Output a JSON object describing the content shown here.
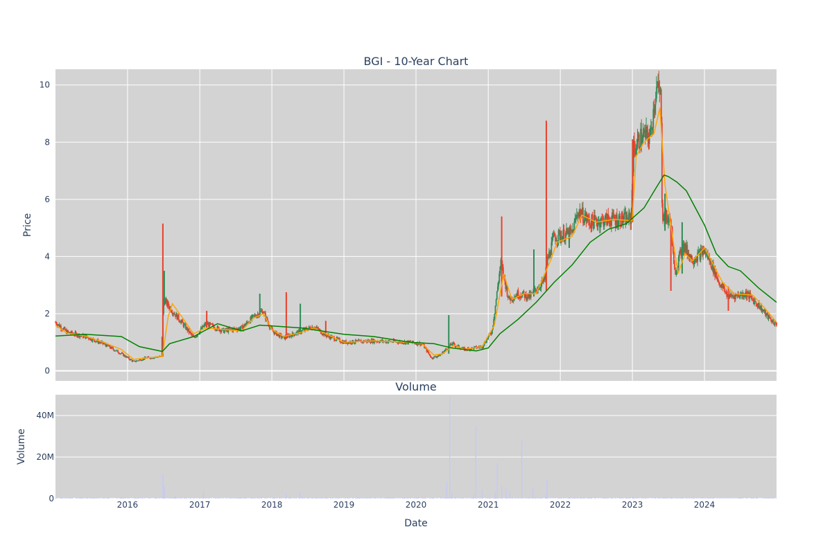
{
  "chart_data": [
    {
      "type": "candlestick",
      "title": "BGI - 10-Year Chart",
      "xlabel": "",
      "ylabel": "Price",
      "ylim": [
        -0.35,
        10.55
      ],
      "x_range": [
        "2015-01-01",
        "2024-12-31"
      ],
      "x_ticks": [
        "2016",
        "2017",
        "2018",
        "2019",
        "2020",
        "2021",
        "2022",
        "2023",
        "2024"
      ],
      "y_ticks": [
        0,
        2,
        4,
        6,
        8,
        10
      ],
      "up_color": "#2e8b57",
      "down_color": "#e8412c",
      "price_path": [
        [
          "2015-01-01",
          1.7
        ],
        [
          "2015-03-01",
          1.35
        ],
        [
          "2015-06-01",
          1.2
        ],
        [
          "2015-09-01",
          0.95
        ],
        [
          "2015-12-01",
          0.6
        ],
        [
          "2016-02-01",
          0.32
        ],
        [
          "2016-04-01",
          0.45
        ],
        [
          "2016-06-20",
          0.5
        ],
        [
          "2016-07-01",
          2.5
        ],
        [
          "2016-08-15",
          2.1
        ],
        [
          "2016-10-01",
          1.7
        ],
        [
          "2016-12-01",
          1.15
        ],
        [
          "2017-02-01",
          1.65
        ],
        [
          "2017-05-01",
          1.4
        ],
        [
          "2017-08-01",
          1.5
        ],
        [
          "2017-10-01",
          1.9
        ],
        [
          "2017-11-15",
          2.1
        ],
        [
          "2018-01-01",
          1.4
        ],
        [
          "2018-03-01",
          1.15
        ],
        [
          "2018-06-01",
          1.4
        ],
        [
          "2018-08-01",
          1.55
        ],
        [
          "2018-10-01",
          1.25
        ],
        [
          "2019-01-01",
          1.0
        ],
        [
          "2019-06-01",
          1.05
        ],
        [
          "2019-12-01",
          1.0
        ],
        [
          "2020-02-01",
          0.95
        ],
        [
          "2020-03-20",
          0.45
        ],
        [
          "2020-05-01",
          0.55
        ],
        [
          "2020-07-01",
          0.95
        ],
        [
          "2020-09-01",
          0.75
        ],
        [
          "2020-12-01",
          0.85
        ],
        [
          "2021-01-20",
          1.4
        ],
        [
          "2021-02-10",
          2.5
        ],
        [
          "2021-03-05",
          3.8
        ],
        [
          "2021-04-15",
          2.5
        ],
        [
          "2021-06-01",
          2.7
        ],
        [
          "2021-08-01",
          2.6
        ],
        [
          "2021-10-15",
          3.2
        ],
        [
          "2021-10-25",
          3.8
        ],
        [
          "2021-12-01",
          4.7
        ],
        [
          "2022-03-01",
          4.8
        ],
        [
          "2022-04-01",
          5.6
        ],
        [
          "2022-06-01",
          5.2
        ],
        [
          "2022-09-01",
          5.3
        ],
        [
          "2022-12-25",
          5.3
        ],
        [
          "2023-01-05",
          7.7
        ],
        [
          "2023-02-15",
          8.2
        ],
        [
          "2023-04-01",
          8.2
        ],
        [
          "2023-05-01",
          9.9
        ],
        [
          "2023-05-25",
          9.6
        ],
        [
          "2023-06-01",
          5.5
        ],
        [
          "2023-07-15",
          5.2
        ],
        [
          "2023-08-01",
          3.4
        ],
        [
          "2023-09-15",
          4.4
        ],
        [
          "2023-11-01",
          3.9
        ],
        [
          "2024-01-01",
          4.2
        ],
        [
          "2024-02-01",
          3.8
        ],
        [
          "2024-03-15",
          3.1
        ],
        [
          "2024-05-01",
          2.6
        ],
        [
          "2024-08-01",
          2.7
        ],
        [
          "2024-10-01",
          2.3
        ],
        [
          "2024-11-15",
          1.9
        ],
        [
          "2024-12-31",
          1.6
        ]
      ],
      "spikes": [
        [
          "2016-06-28",
          5.15,
          0.5
        ],
        [
          "2016-07-05",
          3.5,
          2.3
        ],
        [
          "2017-02-05",
          2.1,
          1.5
        ],
        [
          "2017-11-01",
          2.7,
          1.9
        ],
        [
          "2018-03-15",
          2.75,
          1.2
        ],
        [
          "2018-05-25",
          2.35,
          1.3
        ],
        [
          "2018-10-01",
          1.75,
          1.2
        ],
        [
          "2020-06-15",
          1.95,
          0.6
        ],
        [
          "2021-03-10",
          5.4,
          2.6
        ],
        [
          "2021-08-20",
          4.25,
          2.6
        ],
        [
          "2021-10-22",
          8.75,
          2.8
        ],
        [
          "2022-02-15",
          4.9,
          4.3
        ],
        [
          "2023-01-02",
          8.1,
          5.2
        ],
        [
          "2023-06-15",
          6.2,
          4.9
        ],
        [
          "2023-07-15",
          5.3,
          2.8
        ],
        [
          "2023-09-10",
          5.2,
          3.4
        ],
        [
          "2024-05-01",
          2.95,
          2.1
        ]
      ],
      "series": [
        {
          "name": "",
          "color": "#ffa500",
          "points": [
            [
              "2015-01-01",
              1.6
            ],
            [
              "2015-03-01",
              1.32
            ],
            [
              "2015-06-01",
              1.22
            ],
            [
              "2015-09-01",
              1.0
            ],
            [
              "2015-12-01",
              0.75
            ],
            [
              "2016-02-01",
              0.4
            ],
            [
              "2016-04-01",
              0.45
            ],
            [
              "2016-06-25",
              0.5
            ],
            [
              "2016-07-25",
              1.9
            ],
            [
              "2016-08-15",
              2.35
            ],
            [
              "2016-10-01",
              1.9
            ],
            [
              "2016-12-01",
              1.3
            ],
            [
              "2017-02-01",
              1.5
            ],
            [
              "2017-05-01",
              1.45
            ],
            [
              "2017-08-01",
              1.4
            ],
            [
              "2017-10-01",
              1.85
            ],
            [
              "2017-11-20",
              2.0
            ],
            [
              "2018-01-01",
              1.45
            ],
            [
              "2018-03-01",
              1.2
            ],
            [
              "2018-06-01",
              1.35
            ],
            [
              "2018-08-01",
              1.5
            ],
            [
              "2018-10-01",
              1.3
            ],
            [
              "2019-01-01",
              1.0
            ],
            [
              "2019-06-01",
              1.05
            ],
            [
              "2019-12-01",
              1.0
            ],
            [
              "2020-02-01",
              0.95
            ],
            [
              "2020-04-01",
              0.55
            ],
            [
              "2020-05-15",
              0.6
            ],
            [
              "2020-07-15",
              0.9
            ],
            [
              "2020-09-01",
              0.75
            ],
            [
              "2020-12-01",
              0.85
            ],
            [
              "2021-02-01",
              1.6
            ],
            [
              "2021-03-20",
              3.4
            ],
            [
              "2021-05-01",
              2.5
            ],
            [
              "2021-07-01",
              2.7
            ],
            [
              "2021-09-01",
              2.7
            ],
            [
              "2021-11-15",
              3.9
            ],
            [
              "2021-12-15",
              4.5
            ],
            [
              "2022-03-01",
              4.7
            ],
            [
              "2022-04-20",
              5.45
            ],
            [
              "2022-07-01",
              5.2
            ],
            [
              "2022-10-01",
              5.3
            ],
            [
              "2022-12-31",
              5.25
            ],
            [
              "2023-01-20",
              7.5
            ],
            [
              "2023-03-01",
              8.0
            ],
            [
              "2023-04-20",
              8.3
            ],
            [
              "2023-05-20",
              9.2
            ],
            [
              "2023-06-15",
              6.5
            ],
            [
              "2023-07-25",
              4.6
            ],
            [
              "2023-08-20",
              3.4
            ],
            [
              "2023-09-25",
              4.1
            ],
            [
              "2023-11-01",
              3.85
            ],
            [
              "2024-01-01",
              4.3
            ],
            [
              "2024-02-01",
              3.9
            ],
            [
              "2024-04-01",
              3.1
            ],
            [
              "2024-06-01",
              2.7
            ],
            [
              "2024-09-01",
              2.65
            ],
            [
              "2024-11-01",
              2.2
            ],
            [
              "2024-12-31",
              1.7
            ]
          ]
        },
        {
          "name": "",
          "color": "#008000",
          "points": [
            [
              "2015-01-01",
              1.22
            ],
            [
              "2015-06-01",
              1.28
            ],
            [
              "2015-12-01",
              1.2
            ],
            [
              "2016-03-01",
              0.85
            ],
            [
              "2016-06-25",
              0.68
            ],
            [
              "2016-08-01",
              0.95
            ],
            [
              "2016-12-01",
              1.2
            ],
            [
              "2017-04-01",
              1.65
            ],
            [
              "2017-08-01",
              1.4
            ],
            [
              "2017-11-01",
              1.6
            ],
            [
              "2018-06-01",
              1.5
            ],
            [
              "2019-01-01",
              1.28
            ],
            [
              "2019-06-01",
              1.2
            ],
            [
              "2019-12-01",
              1.0
            ],
            [
              "2020-04-01",
              0.95
            ],
            [
              "2020-07-01",
              0.8
            ],
            [
              "2020-11-01",
              0.7
            ],
            [
              "2021-01-01",
              0.8
            ],
            [
              "2021-03-01",
              1.3
            ],
            [
              "2021-06-01",
              1.8
            ],
            [
              "2021-09-01",
              2.4
            ],
            [
              "2021-12-01",
              3.1
            ],
            [
              "2022-03-01",
              3.7
            ],
            [
              "2022-06-01",
              4.5
            ],
            [
              "2022-09-01",
              4.95
            ],
            [
              "2022-12-01",
              5.15
            ],
            [
              "2023-03-01",
              5.7
            ],
            [
              "2023-05-01",
              6.4
            ],
            [
              "2023-06-10",
              6.85
            ],
            [
              "2023-07-01",
              6.8
            ],
            [
              "2023-08-15",
              6.6
            ],
            [
              "2023-10-01",
              6.3
            ],
            [
              "2024-01-01",
              5.1
            ],
            [
              "2024-03-01",
              4.1
            ],
            [
              "2024-05-01",
              3.65
            ],
            [
              "2024-07-01",
              3.5
            ],
            [
              "2024-10-01",
              2.9
            ],
            [
              "2024-12-31",
              2.4
            ]
          ]
        }
      ]
    },
    {
      "type": "bar",
      "title": "Volume",
      "xlabel": "Date",
      "ylabel": "Volume",
      "ylim": [
        0,
        50000000
      ],
      "y_ticks": [
        0,
        20000000,
        40000000
      ],
      "y_tick_labels": [
        "0",
        "20M",
        "40M"
      ],
      "bar_color": "#c6c9f2",
      "bars": [
        [
          "2016-06-28",
          12000000
        ],
        [
          "2016-07-05",
          6000000
        ],
        [
          "2016-09-01",
          1200000
        ],
        [
          "2017-01-20",
          3500000
        ],
        [
          "2017-11-10",
          1500000
        ],
        [
          "2018-03-15",
          2500000
        ],
        [
          "2018-05-25",
          3000000
        ],
        [
          "2020-06-05",
          8000000
        ],
        [
          "2020-06-20",
          49000000
        ],
        [
          "2020-07-01",
          3000000
        ],
        [
          "2020-10-20",
          2500000
        ],
        [
          "2020-10-30",
          35000000
        ],
        [
          "2020-12-01",
          4500000
        ],
        [
          "2021-02-05",
          3000000
        ],
        [
          "2021-02-15",
          17000000
        ],
        [
          "2021-03-10",
          6000000
        ],
        [
          "2021-04-01",
          5000000
        ],
        [
          "2021-04-20",
          3500000
        ],
        [
          "2021-06-20",
          28500000
        ],
        [
          "2021-08-15",
          5500000
        ],
        [
          "2021-10-20",
          2000000
        ],
        [
          "2021-10-25",
          9500000
        ],
        [
          "2023-01-03",
          1000000
        ],
        [
          "2023-06-10",
          800000
        ]
      ]
    }
  ]
}
